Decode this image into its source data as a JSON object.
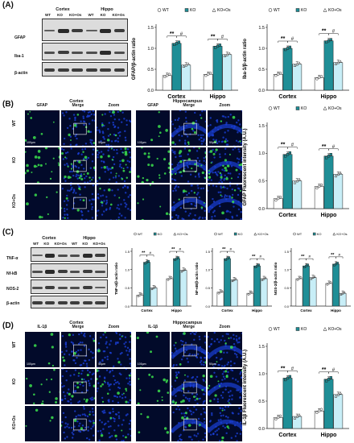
{
  "panels": {
    "A": {
      "label": "(A)",
      "blot_headers": {
        "cortex": "Cortex",
        "hippo": "Hippo"
      },
      "groups": [
        "WT",
        "KO",
        "KO+Os",
        "WT",
        "KO",
        "KO+Os"
      ],
      "rows": [
        "GFAP",
        "Iba-1",
        "β-actin"
      ]
    },
    "B": {
      "label": "(B)",
      "headers": {
        "cortex": "Cortex",
        "hippocampus": "Hippocampus"
      },
      "col_labels": [
        "GFAP",
        "Merge",
        "Zoom",
        "GFAP",
        "Merge",
        "Zoom"
      ],
      "rows": [
        "WT",
        "KO",
        "KO+Os"
      ],
      "scale_100": "100μm",
      "scale_50": "50μm"
    },
    "C": {
      "label": "(C)",
      "blot_headers": {
        "cortex": "Cortex",
        "hippo": "Hippo"
      },
      "groups": [
        "WT",
        "KO",
        "KO+Os",
        "WT",
        "KO",
        "KO+Os"
      ],
      "rows": [
        "TNF-α",
        "Nf-kB",
        "NOS-2",
        "β-actin"
      ]
    },
    "D": {
      "label": "(D)",
      "headers": {
        "cortex": "Cortex",
        "hippocampus": "Hippocampus"
      },
      "col_labels": [
        "IL-1β",
        "Merge",
        "Zoom",
        "IL-1β",
        "Merge",
        "Zoom"
      ],
      "rows": [
        "WT",
        "KO",
        "KO+Os"
      ],
      "scale_100": "100μm",
      "scale_50": "50μm"
    }
  },
  "legend": [
    "WT",
    "KO",
    "KO+Os"
  ],
  "colors": {
    "wt": "#ffffff",
    "ko": "#1f8e96",
    "koos": "#c8eef7",
    "dapi": "#1a3fd6",
    "stain": "#3be04c"
  },
  "chart_data": [
    {
      "id": "A1",
      "type": "bar",
      "ylabel": "GFAP/β-actin ratio",
      "categories": [
        "Cortex",
        "Hippo"
      ],
      "ylim": [
        0,
        1.5
      ],
      "yticks": [
        "0.0",
        "0.5",
        "1.0",
        "1.5"
      ],
      "sig": [
        "**",
        "#"
      ],
      "series": [
        {
          "name": "WT",
          "values": [
            0.35,
            0.38
          ]
        },
        {
          "name": "KO",
          "values": [
            1.12,
            1.05
          ]
        },
        {
          "name": "KO+Os",
          "values": [
            0.6,
            0.85
          ]
        }
      ]
    },
    {
      "id": "A2",
      "type": "bar",
      "ylabel": "Iba-1/β-actin ratio",
      "categories": [
        "Cortex",
        "Hippo"
      ],
      "ylim": [
        0,
        1.5
      ],
      "yticks": [
        "0.0",
        "0.5",
        "1.0",
        "1.5"
      ],
      "sig": [
        "**",
        "#"
      ],
      "series": [
        {
          "name": "WT",
          "values": [
            0.38,
            0.3
          ]
        },
        {
          "name": "KO",
          "values": [
            1.0,
            1.18
          ]
        },
        {
          "name": "KO+Os",
          "values": [
            0.62,
            0.66
          ]
        }
      ]
    },
    {
      "id": "B1",
      "type": "bar",
      "ylabel": "GFAP Fluorescent intensity (A.U.)",
      "categories": [
        "Cortex",
        "Hippo"
      ],
      "ylim": [
        0,
        1.5
      ],
      "yticks": [
        "0.0",
        "0.5",
        "1.0",
        "1.5"
      ],
      "sig": [
        "**",
        "#"
      ],
      "series": [
        {
          "name": "WT",
          "values": [
            0.18,
            0.4
          ]
        },
        {
          "name": "KO",
          "values": [
            0.98,
            0.95
          ]
        },
        {
          "name": "KO+Os",
          "values": [
            0.5,
            0.62
          ]
        }
      ]
    },
    {
      "id": "C1",
      "type": "bar",
      "ylabel": "TNF-α/β-actin ratio",
      "categories": [
        "Cortex",
        "Hippo"
      ],
      "ylim": [
        0,
        1.5
      ],
      "yticks": [
        "0.0",
        "0.5",
        "1.0",
        "1.5"
      ],
      "sig": [
        "**",
        "#"
      ],
      "series": [
        {
          "name": "WT",
          "values": [
            0.3,
            0.75
          ]
        },
        {
          "name": "KO",
          "values": [
            1.2,
            1.3
          ]
        },
        {
          "name": "KO+Os",
          "values": [
            0.5,
            0.98
          ]
        }
      ]
    },
    {
      "id": "C2",
      "type": "bar",
      "ylabel": "NF-κB/β-actin ratio",
      "categories": [
        "Cortex",
        "Hippo"
      ],
      "ylim": [
        0,
        1.5
      ],
      "yticks": [
        "0.0",
        "0.5",
        "1.0",
        "1.5"
      ],
      "sig": [
        "**",
        "#"
      ],
      "series": [
        {
          "name": "WT",
          "values": [
            0.38,
            0.35
          ]
        },
        {
          "name": "KO",
          "values": [
            1.3,
            1.1
          ]
        },
        {
          "name": "KO+Os",
          "values": [
            0.72,
            0.75
          ]
        }
      ]
    },
    {
      "id": "C3",
      "type": "bar",
      "ylabel": "NOS-2/β-actin ratio",
      "categories": [
        "Cortex",
        "Hippo"
      ],
      "ylim": [
        0,
        1.5
      ],
      "yticks": [
        "0.0",
        "0.5",
        "1.0",
        "1.5"
      ],
      "sig": [
        "**",
        "#"
      ],
      "series": [
        {
          "name": "WT",
          "values": [
            0.75,
            0.62
          ]
        },
        {
          "name": "KO",
          "values": [
            1.1,
            1.15
          ]
        },
        {
          "name": "KO+Os",
          "values": [
            0.78,
            0.35
          ]
        }
      ]
    },
    {
      "id": "D1",
      "type": "bar",
      "ylabel": "IL-1β Fluorescent intensity (A.U.)",
      "categories": [
        "Cortex",
        "Hippo"
      ],
      "ylim": [
        0,
        1.5
      ],
      "yticks": [
        "0.0",
        "0.5",
        "1.0",
        "1.5"
      ],
      "sig": [
        "**",
        "#"
      ],
      "series": [
        {
          "name": "WT",
          "values": [
            0.2,
            0.32
          ]
        },
        {
          "name": "KO",
          "values": [
            0.92,
            0.9
          ]
        },
        {
          "name": "KO+Os",
          "values": [
            0.22,
            0.62
          ]
        }
      ]
    }
  ]
}
